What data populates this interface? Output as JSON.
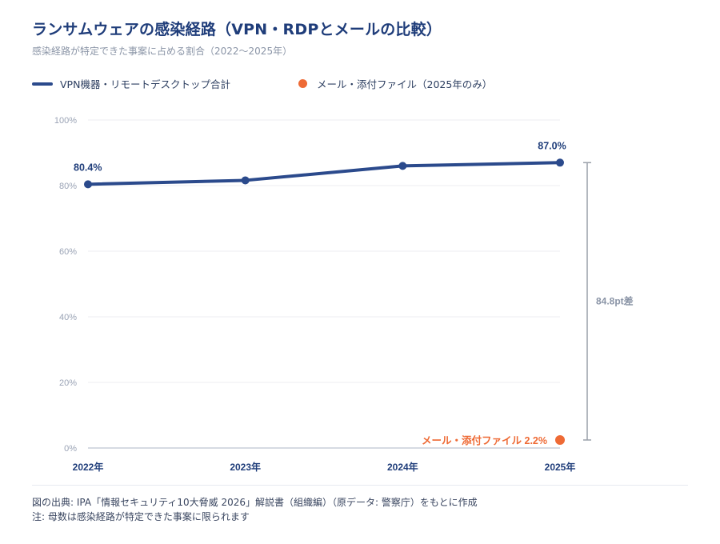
{
  "header": {
    "title": "ランサムウェアの感染経路（VPN・RDPとメールの比較）",
    "subtitle": "感染経路が特定できた事案に占める割合（2022〜2025年）"
  },
  "legend": {
    "line_label": "VPN機器・リモートデスクトップ合計",
    "dot_label": "メール・添付ファイル（2025年のみ）"
  },
  "chart_data": {
    "type": "line",
    "categories": [
      "2022年",
      "2023年",
      "2024年",
      "2025年"
    ],
    "ylim": [
      0,
      100
    ],
    "yticks": [
      "0%",
      "20%",
      "40%",
      "60%",
      "80%",
      "100%"
    ],
    "grid": true,
    "series": [
      {
        "name": "VPN機器・リモートデスクトップ合計",
        "values": [
          80.4,
          81.6,
          86.0,
          87.0
        ],
        "color": "#2b4a8c"
      },
      {
        "name": "メール・添付ファイル（2025年のみ）",
        "values": [
          null,
          null,
          null,
          2.2
        ],
        "color": "#ee6a35"
      }
    ],
    "data_labels": {
      "first": "80.4%",
      "last": "87.0%",
      "email": "メール・添付ファイル 2.2%"
    },
    "annotation": {
      "text": "84.8pt差"
    }
  },
  "footer": {
    "source": "図の出典: IPA「情報セキュリティ10大脅威 2026」解説書（組織編）（原データ: 警察庁）をもとに作成",
    "note": "注: 母数は感染経路が特定できた事案に限られます"
  }
}
